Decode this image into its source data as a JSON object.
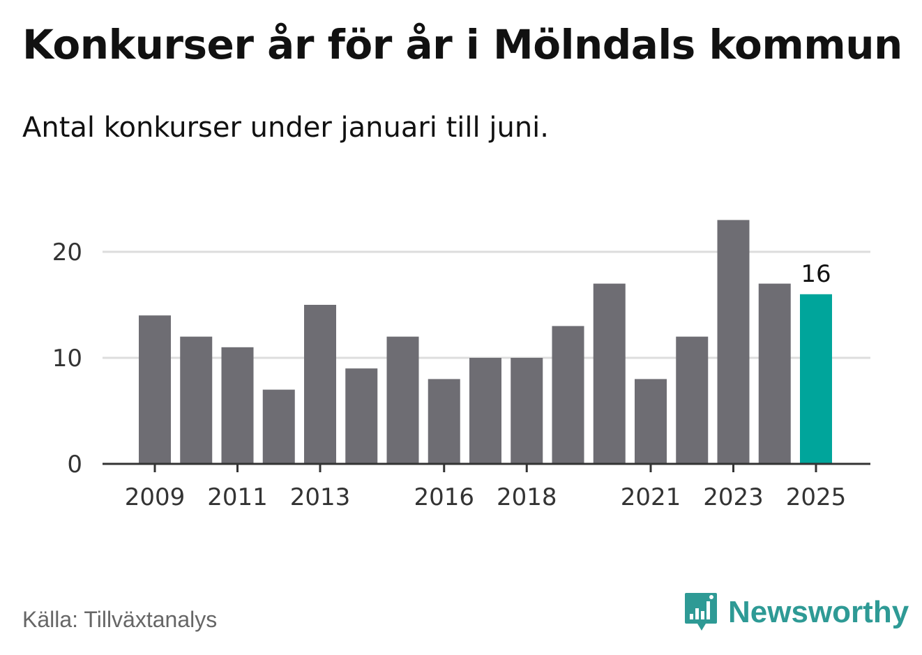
{
  "header": {
    "title": "Konkurser år för år i Mölndals kommun",
    "subtitle": "Antal konkurser under januari till juni."
  },
  "footer": {
    "source": "Källa: Tillväxtanalys",
    "brand": "Newsworthy"
  },
  "colors": {
    "bar": "#6e6d73",
    "highlight": "#00a59b",
    "grid": "#dddddd",
    "axis": "#333333",
    "brand": "#2e9a95"
  },
  "icons": {
    "brand_logo": "bar-chart-speech-bubble-icon"
  },
  "chart_data": {
    "type": "bar",
    "title": "Konkurser år för år i Mölndals kommun",
    "subtitle": "Antal konkurser under januari till juni.",
    "xlabel": "",
    "ylabel": "",
    "categories": [
      "2009",
      "2010",
      "2011",
      "2012",
      "2013",
      "2014",
      "2015",
      "2016",
      "2017",
      "2018",
      "2019",
      "2020",
      "2021",
      "2022",
      "2023",
      "2024",
      "2025"
    ],
    "values": [
      14,
      12,
      11,
      7,
      15,
      9,
      12,
      8,
      10,
      10,
      13,
      17,
      8,
      12,
      23,
      17,
      16
    ],
    "highlight_index": 16,
    "data_labels": [
      {
        "category": "2025",
        "text": "16"
      }
    ],
    "x_tick_labels": [
      "2009",
      "2011",
      "2013",
      "2016",
      "2018",
      "2021",
      "2023",
      "2025"
    ],
    "y_ticks": [
      0,
      10,
      20
    ],
    "ylim": [
      0,
      23
    ],
    "grid": true,
    "legend": "none"
  }
}
